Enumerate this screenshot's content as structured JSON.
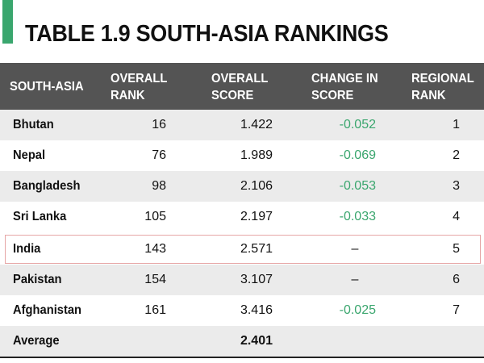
{
  "title": {
    "number": "TABLE 1.9",
    "text": "SOUTH-ASIA RANKINGS"
  },
  "columns": [
    "SOUTH-ASIA",
    "OVERALL\nRANK",
    "OVERALL\nSCORE",
    "CHANGE IN\nSCORE",
    "REGIONAL\nRANK"
  ],
  "rows": [
    {
      "country": "Bhutan",
      "overall_rank": "16",
      "overall_score": "1.422",
      "change": "-0.052",
      "regional_rank": "1"
    },
    {
      "country": "Nepal",
      "overall_rank": "76",
      "overall_score": "1.989",
      "change": "-0.069",
      "regional_rank": "2"
    },
    {
      "country": "Bangladesh",
      "overall_rank": "98",
      "overall_score": "2.106",
      "change": "-0.053",
      "regional_rank": "3"
    },
    {
      "country": "Sri Lanka",
      "overall_rank": "105",
      "overall_score": "2.197",
      "change": "-0.033",
      "regional_rank": "4"
    },
    {
      "country": "India",
      "overall_rank": "143",
      "overall_score": "2.571",
      "change": "–",
      "regional_rank": "5"
    },
    {
      "country": "Pakistan",
      "overall_rank": "154",
      "overall_score": "3.107",
      "change": "–",
      "regional_rank": "6"
    },
    {
      "country": "Afghanistan",
      "overall_rank": "161",
      "overall_score": "3.416",
      "change": "-0.025",
      "regional_rank": "7"
    }
  ],
  "average": {
    "label": "Average",
    "overall_score": "2.401"
  },
  "colors": {
    "accent": "#3aa66e",
    "header_bg": "#545454",
    "row_shade": "#ebebeb",
    "highlight_border": "#e6a6a6",
    "change_text": "#3aa66e"
  }
}
